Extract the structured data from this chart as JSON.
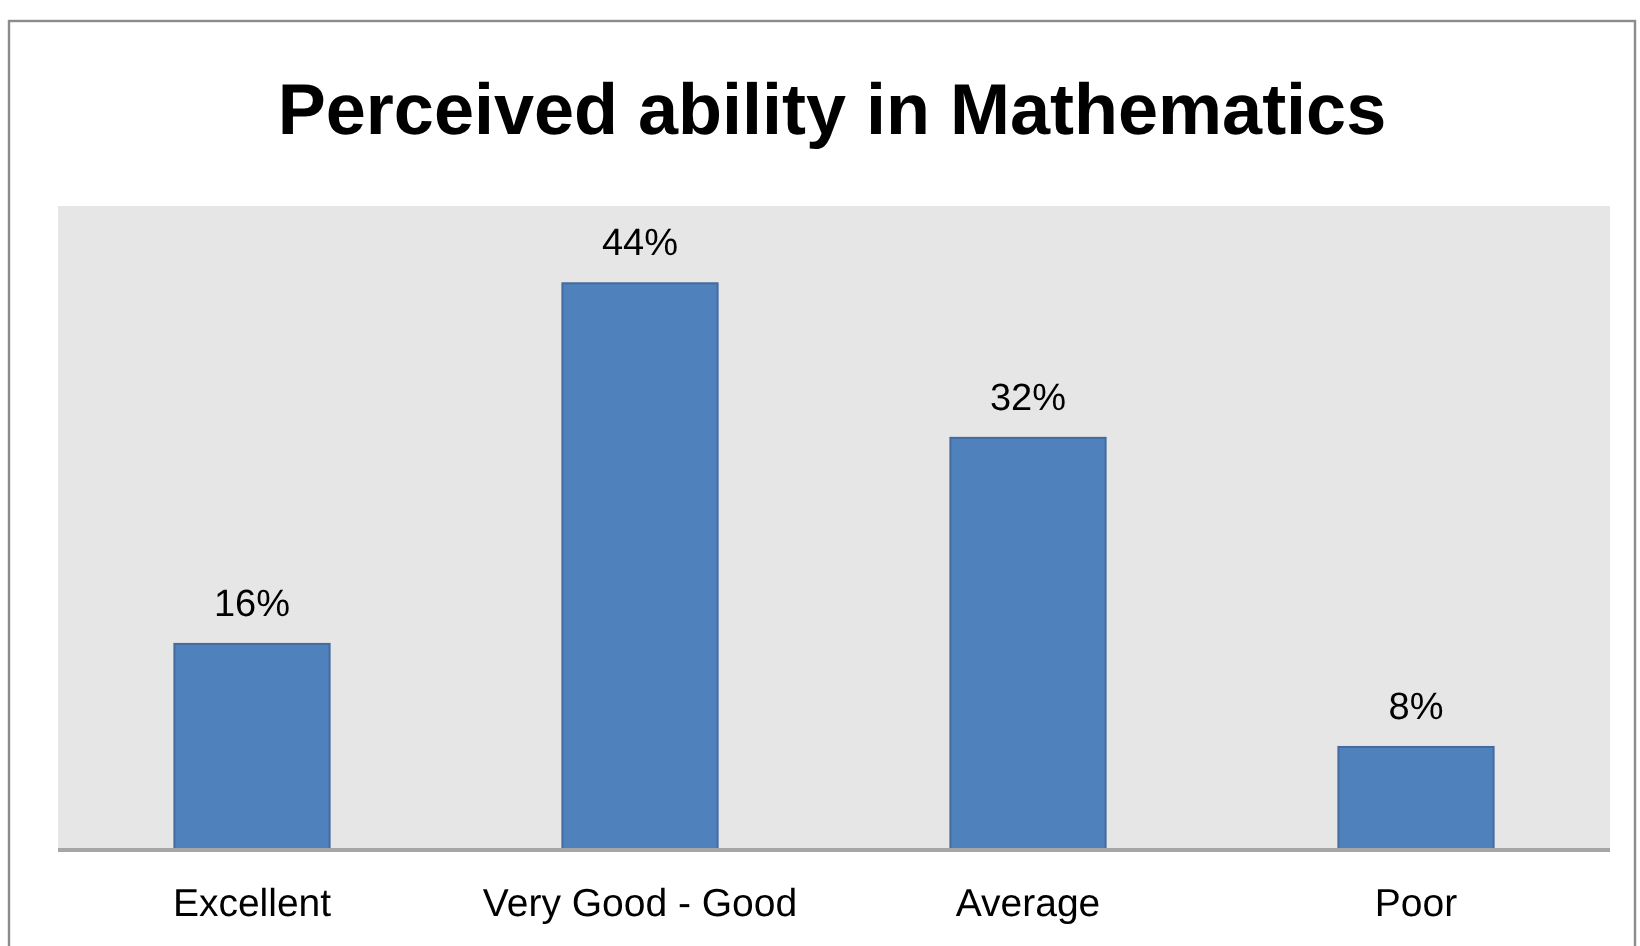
{
  "chart_data": {
    "type": "bar",
    "title": "Perceived ability in Mathematics",
    "categories": [
      "Excellent",
      "Very Good - Good",
      "Average",
      "Poor"
    ],
    "values": [
      16,
      44,
      32,
      8
    ],
    "value_labels": [
      "16%",
      "44%",
      "32%",
      "8%"
    ],
    "color": "#4f81bd",
    "ylim": [
      0,
      50
    ],
    "tick_labels": "x"
  }
}
